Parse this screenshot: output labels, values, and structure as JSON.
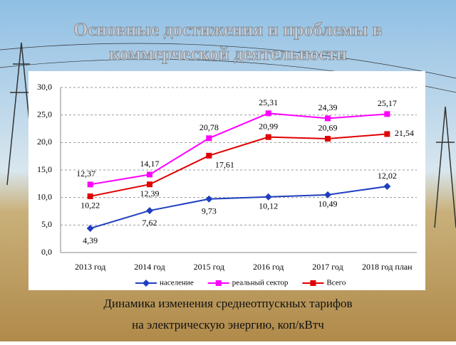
{
  "title": "Основные достижения и проблемы в коммерческой деятельности",
  "caption": [
    "Динамика изменения среднеотпускных тарифов",
    "на электрическую энергию, коп/кВтч"
  ],
  "chart_data": {
    "type": "line",
    "categories": [
      "2013 год",
      "2014 год",
      "2015 год",
      "2016 год",
      "2017 год",
      "2018 год план"
    ],
    "series": [
      {
        "name": "население",
        "color": "#1f3fbf",
        "marker": "diamond",
        "values": [
          4.39,
          7.62,
          9.73,
          10.12,
          10.49,
          12.02
        ],
        "value_labels": [
          "4,39",
          "7,62",
          "9,73",
          "10,12",
          "10,49",
          "12,02"
        ]
      },
      {
        "name": "реальный сектор",
        "color": "#ff00ff",
        "marker": "square",
        "values": [
          12.37,
          14.17,
          20.78,
          25.31,
          24.39,
          25.17
        ],
        "value_labels": [
          "12,37",
          "14,17",
          "20,78",
          "25,31",
          "24,39",
          "25,17"
        ]
      },
      {
        "name": "Всего",
        "color": "#e00000",
        "marker": "square",
        "values": [
          10.22,
          12.39,
          17.61,
          20.99,
          20.69,
          21.54
        ],
        "value_labels": [
          "10,22",
          "12,39",
          "17,61",
          "20,99",
          "20,69",
          "21,54"
        ]
      }
    ],
    "ylim": [
      0,
      30
    ],
    "yticks": [
      {
        "value": 0,
        "label": "0,0"
      },
      {
        "value": 5,
        "label": "5,0"
      },
      {
        "value": 10,
        "label": "10,0"
      },
      {
        "value": 15,
        "label": "15,0"
      },
      {
        "value": 20,
        "label": "20,0"
      },
      {
        "value": 25,
        "label": "25,0"
      },
      {
        "value": 30,
        "label": "30,0"
      }
    ],
    "grid": true,
    "legend": "bottom"
  }
}
